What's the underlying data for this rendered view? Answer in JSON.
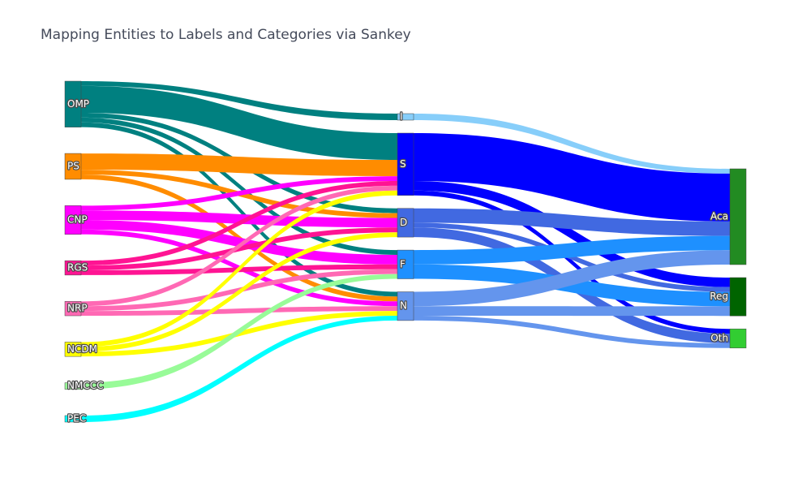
{
  "chart_data": {
    "type": "sankey",
    "title": "Mapping Entities to Labels and Categories via Sankey",
    "nodes": [
      {
        "id": "OMP",
        "label": "OMP",
        "column": 0,
        "color": "#008080"
      },
      {
        "id": "PS",
        "label": "PS",
        "column": 0,
        "color": "#FF8C00"
      },
      {
        "id": "CNP",
        "label": "CNP",
        "column": 0,
        "color": "#FF00FF"
      },
      {
        "id": "RGS",
        "label": "RGS",
        "column": 0,
        "color": "#FF1493"
      },
      {
        "id": "NRP",
        "label": "NRP",
        "column": 0,
        "color": "#FF69B4"
      },
      {
        "id": "NCDM",
        "label": "NCDM",
        "column": 0,
        "color": "#FFFF00"
      },
      {
        "id": "NMCCC",
        "label": "NMCCC",
        "column": 0,
        "color": "#98FB98"
      },
      {
        "id": "PEC",
        "label": "PEC",
        "column": 0,
        "color": "#00FFFF"
      },
      {
        "id": "I",
        "label": "I",
        "column": 1,
        "color": "#87CEFA"
      },
      {
        "id": "S",
        "label": "S",
        "column": 1,
        "color": "#0000FF"
      },
      {
        "id": "D",
        "label": "D",
        "column": 1,
        "color": "#4169E1"
      },
      {
        "id": "F",
        "label": "F",
        "column": 1,
        "color": "#1E90FF"
      },
      {
        "id": "N",
        "label": "N",
        "column": 1,
        "color": "#6495ED"
      },
      {
        "id": "Aca",
        "label": "Aca",
        "column": 2,
        "color": "#228B22"
      },
      {
        "id": "Reg",
        "label": "Reg",
        "column": 2,
        "color": "#006400"
      },
      {
        "id": "Oth",
        "label": "Oth",
        "column": 2,
        "color": "#32CD32"
      }
    ],
    "links": [
      {
        "source": "OMP",
        "target": "I",
        "value": 1.0
      },
      {
        "source": "OMP",
        "target": "S",
        "value": 5.6
      },
      {
        "source": "OMP",
        "target": "D",
        "value": 1.0
      },
      {
        "source": "OMP",
        "target": "F",
        "value": 1.0
      },
      {
        "source": "OMP",
        "target": "N",
        "value": 1.0
      },
      {
        "source": "PS",
        "target": "S",
        "value": 3.4
      },
      {
        "source": "PS",
        "target": "D",
        "value": 1.0
      },
      {
        "source": "PS",
        "target": "N",
        "value": 1.0
      },
      {
        "source": "CNP",
        "target": "S",
        "value": 1.0
      },
      {
        "source": "CNP",
        "target": "D",
        "value": 2.0
      },
      {
        "source": "CNP",
        "target": "F",
        "value": 2.0
      },
      {
        "source": "CNP",
        "target": "N",
        "value": 1.0
      },
      {
        "source": "RGS",
        "target": "S",
        "value": 1.0
      },
      {
        "source": "RGS",
        "target": "D",
        "value": 1.0
      },
      {
        "source": "RGS",
        "target": "F",
        "value": 1.0
      },
      {
        "source": "NRP",
        "target": "S",
        "value": 1.0
      },
      {
        "source": "NRP",
        "target": "F",
        "value": 1.0
      },
      {
        "source": "NRP",
        "target": "N",
        "value": 1.0
      },
      {
        "source": "NCDM",
        "target": "S",
        "value": 1.0
      },
      {
        "source": "NCDM",
        "target": "D",
        "value": 1.0
      },
      {
        "source": "NCDM",
        "target": "N",
        "value": 1.0
      },
      {
        "source": "NMCCC",
        "target": "F",
        "value": 1.0
      },
      {
        "source": "PEC",
        "target": "N",
        "value": 1.0
      },
      {
        "source": "I",
        "target": "Aca",
        "value": 1.0
      },
      {
        "source": "S",
        "target": "Aca",
        "value": 10.0
      },
      {
        "source": "S",
        "target": "Reg",
        "value": 2.0
      },
      {
        "source": "S",
        "target": "Oth",
        "value": 1.0
      },
      {
        "source": "D",
        "target": "Aca",
        "value": 3.0
      },
      {
        "source": "D",
        "target": "Reg",
        "value": 1.0
      },
      {
        "source": "D",
        "target": "Oth",
        "value": 2.0
      },
      {
        "source": "F",
        "target": "Aca",
        "value": 3.0
      },
      {
        "source": "F",
        "target": "Reg",
        "value": 3.0
      },
      {
        "source": "N",
        "target": "Aca",
        "value": 3.0
      },
      {
        "source": "N",
        "target": "Reg",
        "value": 2.0
      },
      {
        "source": "N",
        "target": "Oth",
        "value": 1.0
      }
    ]
  }
}
